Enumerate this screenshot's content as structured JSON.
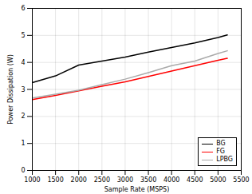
{
  "chart_data": {
    "type": "line",
    "xlabel": "Sample Rate (MSPS)",
    "ylabel": "Power Dissipation (W)",
    "x": [
      1000,
      1500,
      2000,
      2500,
      3000,
      3500,
      4000,
      4500,
      5000,
      5200
    ],
    "series": [
      {
        "name": "BG",
        "color": "#000000",
        "values": [
          3.25,
          3.5,
          3.9,
          4.05,
          4.2,
          4.38,
          4.55,
          4.72,
          4.92,
          5.02
        ]
      },
      {
        "name": "FG",
        "color": "#ff0000",
        "values": [
          2.62,
          2.78,
          2.95,
          3.12,
          3.28,
          3.48,
          3.68,
          3.88,
          4.08,
          4.15
        ]
      },
      {
        "name": "LPBG",
        "color": "#aaaaaa",
        "values": [
          2.68,
          2.82,
          2.97,
          3.18,
          3.38,
          3.62,
          3.88,
          4.05,
          4.33,
          4.43
        ]
      }
    ],
    "xlim": [
      1000,
      5500
    ],
    "ylim": [
      0,
      6
    ],
    "xticks": [
      1000,
      1500,
      2000,
      2500,
      3000,
      3500,
      4000,
      4500,
      5000,
      5500
    ],
    "yticks": [
      0,
      1,
      2,
      3,
      4,
      5,
      6
    ],
    "grid": true,
    "legend": "lower right"
  }
}
